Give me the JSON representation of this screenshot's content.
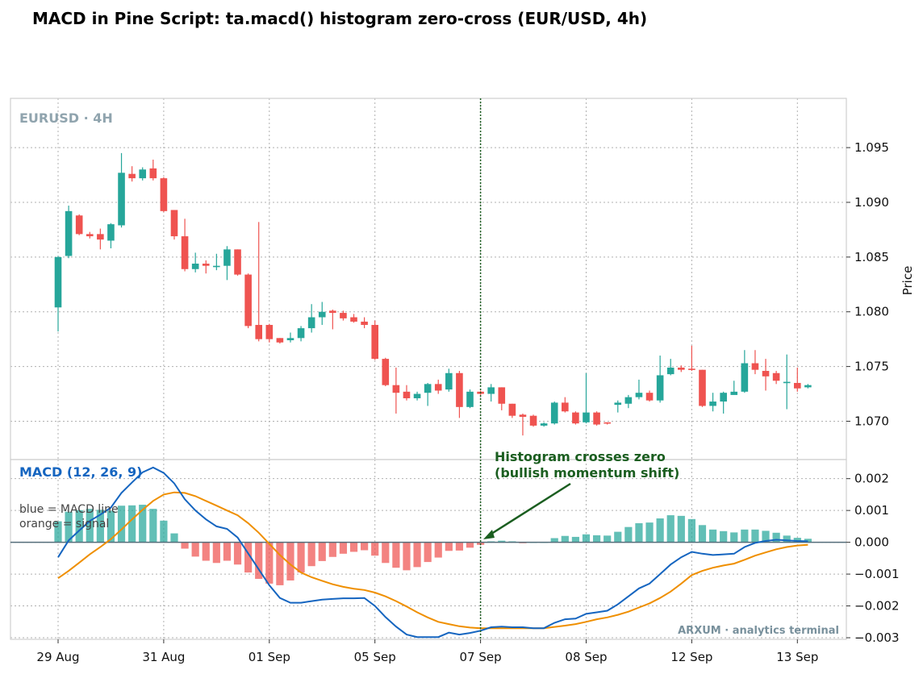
{
  "title": "MACD in Pine Script: ta.macd() histogram zero-cross  (EUR/USD, 4h)",
  "watermark": "EURUSD · 4H",
  "credit": "ARXUM · analytics terminal",
  "macd_panel_title": "MACD (12, 26, 9)",
  "macd_note_line1": "blue = MACD line",
  "macd_note_line2": "orange = signal",
  "annotation_line1": "Histogram crosses zero",
  "annotation_line2": "(bullish momentum shift)",
  "colors": {
    "up": "#26a69a",
    "down": "#ef5350",
    "macd": "#1565c0",
    "signal": "#ef8f00",
    "hist_up": "#26a69a",
    "hist_down": "#ef5350",
    "annotation": "#1b5e20",
    "zero_line": "#546e7a",
    "grid": "#b0b0b0"
  },
  "chart_data": [
    {
      "type": "candlestick",
      "ylabel": "Price",
      "ylim": [
        1.0665,
        1.0995
      ],
      "yticks": [
        "1.095",
        "1.090",
        "1.085",
        "1.080",
        "1.075",
        "1.070"
      ],
      "x_tick_labels": [
        "29 Aug",
        "31 Aug",
        "01 Sep",
        "05 Sep",
        "07 Sep",
        "08 Sep",
        "12 Sep",
        "13 Sep"
      ],
      "x_tick_bar_index": [
        0,
        10,
        20,
        30,
        40,
        50,
        60,
        70
      ],
      "grid": true,
      "candles": [
        [
          1.0804,
          1.085,
          1.0782,
          1.0851
        ],
        [
          1.0851,
          1.0892,
          1.0849,
          1.0897
        ],
        [
          1.0888,
          1.0871,
          1.087,
          1.0889
        ],
        [
          1.0871,
          1.0869,
          1.0867,
          1.0873
        ],
        [
          1.0871,
          1.0866,
          1.0857,
          1.0876
        ],
        [
          1.0865,
          1.088,
          1.0858,
          1.0881
        ],
        [
          1.0879,
          1.0927,
          1.0877,
          1.0945
        ],
        [
          1.0926,
          1.0922,
          1.0919,
          1.0933
        ],
        [
          1.0922,
          1.093,
          1.092,
          1.0932
        ],
        [
          1.0931,
          1.0922,
          1.092,
          1.0939
        ],
        [
          1.0922,
          1.0892,
          1.0891,
          1.0923
        ],
        [
          1.0893,
          1.0869,
          1.0866,
          1.0893
        ],
        [
          1.0869,
          1.0839,
          1.0837,
          1.0885
        ],
        [
          1.0839,
          1.0844,
          1.0836,
          1.0854
        ],
        [
          1.0844,
          1.0842,
          1.0835,
          1.0847
        ],
        [
          1.0842,
          1.0842,
          1.0838,
          1.0853
        ],
        [
          1.0842,
          1.0857,
          1.0829,
          1.086
        ],
        [
          1.0857,
          1.0834,
          1.0833,
          1.0857
        ],
        [
          1.0834,
          1.0787,
          1.0785,
          1.0835
        ],
        [
          1.0788,
          1.0775,
          1.0773,
          1.0882
        ],
        [
          1.0788,
          1.0775,
          1.0772,
          1.0789
        ],
        [
          1.0776,
          1.0772,
          1.0771,
          1.0776
        ],
        [
          1.0774,
          1.0776,
          1.0772,
          1.0781
        ],
        [
          1.0776,
          1.0785,
          1.0773,
          1.0787
        ],
        [
          1.0785,
          1.0795,
          1.0781,
          1.0807
        ],
        [
          1.0795,
          1.08,
          1.0788,
          1.0809
        ],
        [
          1.0801,
          1.0799,
          1.0784,
          1.0802
        ],
        [
          1.0799,
          1.0794,
          1.0792,
          1.0801
        ],
        [
          1.0795,
          1.0791,
          1.079,
          1.0798
        ],
        [
          1.0791,
          1.0788,
          1.0785,
          1.0795
        ],
        [
          1.0788,
          1.0757,
          1.0756,
          1.0792
        ],
        [
          1.0757,
          1.0733,
          1.0732,
          1.0758
        ],
        [
          1.0733,
          1.0726,
          1.0707,
          1.0749
        ],
        [
          1.0727,
          1.0721,
          1.0719,
          1.0733
        ],
        [
          1.0721,
          1.0725,
          1.0719,
          1.0727
        ],
        [
          1.0726,
          1.0734,
          1.0714,
          1.0735
        ],
        [
          1.0734,
          1.0728,
          1.0725,
          1.0738
        ],
        [
          1.0729,
          1.0744,
          1.0727,
          1.0748
        ],
        [
          1.0744,
          1.0713,
          1.0703,
          1.0746
        ],
        [
          1.0713,
          1.0727,
          1.0712,
          1.0729
        ],
        [
          1.0727,
          1.0725,
          1.0724,
          1.0728
        ],
        [
          1.0725,
          1.0731,
          1.0718,
          1.0734
        ],
        [
          1.0731,
          1.0716,
          1.071,
          1.0731
        ],
        [
          1.0716,
          1.0705,
          1.0703,
          1.0716
        ],
        [
          1.0706,
          1.0704,
          1.0687,
          1.0707
        ],
        [
          1.0705,
          1.0696,
          1.0695,
          1.0706
        ],
        [
          1.0696,
          1.0698,
          1.0695,
          1.0699
        ],
        [
          1.0698,
          1.0717,
          1.0697,
          1.0718
        ],
        [
          1.0717,
          1.0709,
          1.0708,
          1.0722
        ],
        [
          1.0708,
          1.0698,
          1.0697,
          1.0709
        ],
        [
          1.0699,
          1.0708,
          1.0698,
          1.0744
        ],
        [
          1.0708,
          1.0697,
          1.0696,
          1.0709
        ],
        [
          1.0699,
          1.0698,
          1.0697,
          1.0699
        ],
        [
          1.0715,
          1.0717,
          1.0708,
          1.0719
        ],
        [
          1.0716,
          1.0722,
          1.0712,
          1.0724
        ],
        [
          1.0722,
          1.0726,
          1.072,
          1.0738
        ],
        [
          1.0726,
          1.0719,
          1.0718,
          1.0728
        ],
        [
          1.0719,
          1.0742,
          1.0717,
          1.076
        ],
        [
          1.0743,
          1.0749,
          1.0742,
          1.0757
        ],
        [
          1.0749,
          1.0747,
          1.0745,
          1.0751
        ],
        [
          1.0748,
          1.0747,
          1.0746,
          1.0769
        ],
        [
          1.0747,
          1.0714,
          1.0713,
          1.0747
        ],
        [
          1.0714,
          1.0718,
          1.0709,
          1.0726
        ],
        [
          1.0718,
          1.0726,
          1.0707,
          1.0727
        ],
        [
          1.0724,
          1.0727,
          1.0726,
          1.0737
        ],
        [
          1.0727,
          1.0753,
          1.0726,
          1.0765
        ],
        [
          1.0753,
          1.0747,
          1.0743,
          1.0765
        ],
        [
          1.0746,
          1.0741,
          1.0728,
          1.0757
        ],
        [
          1.0744,
          1.0737,
          1.0734,
          1.0746
        ],
        [
          1.0736,
          1.0736,
          1.0711,
          1.0761
        ],
        [
          1.0735,
          1.073,
          1.0727,
          1.0749
        ],
        [
          1.0731,
          1.0733,
          1.073,
          1.0734
        ]
      ]
    },
    {
      "type": "line+bar",
      "ylim": [
        -0.00305,
        0.0026
      ],
      "yticks": [
        "0.002",
        "0.001",
        "0.000",
        "−0.001",
        "−0.002",
        "−0.003"
      ],
      "grid": true,
      "cross_bar_index": 40,
      "series": [
        {
          "name": "blue = MACD line",
          "kind": "line",
          "values": [
            -0.00047,
            6e-05,
            0.00037,
            0.00067,
            0.00087,
            0.00109,
            0.00155,
            0.00188,
            0.0022,
            0.00235,
            0.00218,
            0.00185,
            0.00135,
            0.001,
            0.00072,
            0.0005,
            0.00042,
            0.00015,
            -0.00035,
            -0.00085,
            -0.00135,
            -0.00175,
            -0.0019,
            -0.0019,
            -0.00185,
            -0.0018,
            -0.00178,
            -0.00176,
            -0.00176,
            -0.00175,
            -0.002,
            -0.00235,
            -0.00265,
            -0.0029,
            -0.00298,
            -0.00298,
            -0.00298,
            -0.00284,
            -0.0029,
            -0.00285,
            -0.00278,
            -0.00267,
            -0.00265,
            -0.00267,
            -0.00267,
            -0.0027,
            -0.0027,
            -0.00253,
            -0.00242,
            -0.0024,
            -0.00225,
            -0.0022,
            -0.00215,
            -0.00195,
            -0.0017,
            -0.00145,
            -0.0013,
            -0.001,
            -0.0007,
            -0.00047,
            -0.0003,
            -0.00036,
            -0.0004,
            -0.00038,
            -0.00036,
            -0.00015,
            -2e-05,
            4e-05,
            8e-05,
            6e-05,
            4e-05,
            3e-05
          ]
        },
        {
          "name": "orange = signal",
          "kind": "line",
          "values": [
            -0.00113,
            -0.0009,
            -0.00064,
            -0.00038,
            -0.00015,
            0.0001,
            0.0004,
            0.00072,
            0.00102,
            0.0013,
            0.0015,
            0.00157,
            0.00155,
            0.00145,
            0.0013,
            0.00115,
            0.001,
            0.00085,
            0.0006,
            0.0003,
            -5e-05,
            -0.0004,
            -0.0007,
            -0.00095,
            -0.0011,
            -0.00121,
            -0.00132,
            -0.0014,
            -0.00146,
            -0.0015,
            -0.00158,
            -0.0017,
            -0.00185,
            -0.00202,
            -0.0022,
            -0.00236,
            -0.0025,
            -0.00257,
            -0.00264,
            -0.00268,
            -0.0027,
            -0.0027,
            -0.0027,
            -0.0027,
            -0.0027,
            -0.0027,
            -0.0027,
            -0.00266,
            -0.00262,
            -0.00257,
            -0.0025,
            -0.00242,
            -0.00236,
            -0.00228,
            -0.00218,
            -0.00205,
            -0.00192,
            -0.00175,
            -0.00155,
            -0.0013,
            -0.00103,
            -0.0009,
            -0.0008,
            -0.00073,
            -0.00067,
            -0.00055,
            -0.00042,
            -0.00032,
            -0.00022,
            -0.00015,
            -0.0001,
            -8e-05
          ]
        },
        {
          "name": "histogram",
          "kind": "bar",
          "values": [
            0.00066,
            0.00096,
            0.00101,
            0.00105,
            0.00102,
            0.00099,
            0.00115,
            0.00116,
            0.00118,
            0.00105,
            0.00068,
            0.00028,
            -0.0002,
            -0.00045,
            -0.00058,
            -0.00065,
            -0.00058,
            -0.0007,
            -0.00095,
            -0.00115,
            -0.0013,
            -0.00135,
            -0.0012,
            -0.00095,
            -0.00075,
            -0.00059,
            -0.00046,
            -0.00036,
            -0.0003,
            -0.00025,
            -0.00042,
            -0.00065,
            -0.0008,
            -0.00088,
            -0.00078,
            -0.00062,
            -0.00048,
            -0.00027,
            -0.00026,
            -0.00017,
            -8e-05,
            3e-05,
            5e-05,
            3e-05,
            -3e-05,
            0.0,
            0.0,
            0.00013,
            0.0002,
            0.00017,
            0.00025,
            0.00022,
            0.00021,
            0.00033,
            0.00048,
            0.0006,
            0.00062,
            0.00075,
            0.00085,
            0.00083,
            0.00073,
            0.00054,
            0.0004,
            0.00035,
            0.00031,
            0.0004,
            0.0004,
            0.00036,
            0.0003,
            0.00021,
            0.00014,
            0.00011
          ]
        }
      ]
    }
  ]
}
